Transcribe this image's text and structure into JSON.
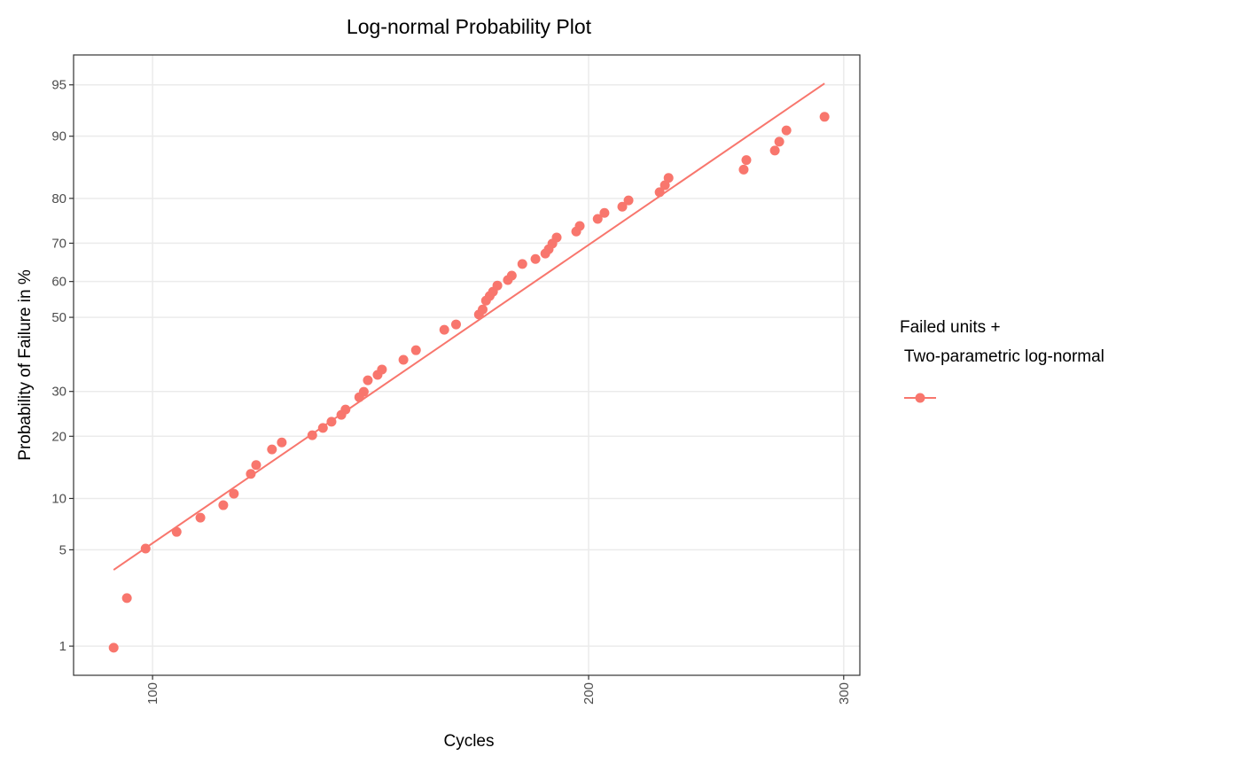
{
  "chart_data": {
    "type": "probability",
    "title": "Log-normal Probability Plot",
    "x_label": "Cycles",
    "y_label": "Probability of Failure in %",
    "x_log": true,
    "y_scale": "probit",
    "grid": true,
    "xlim": [
      88.2,
      307.8
    ],
    "ylim": [
      0.566,
      96.83
    ],
    "xticks": [
      100,
      200,
      300
    ],
    "yticks": [
      1,
      5,
      10,
      20,
      30,
      50,
      60,
      70,
      80,
      90,
      95
    ],
    "legend_title": [
      "Failed units +",
      " Two-parametric log-normal"
    ],
    "legend_position": "right",
    "points": {
      "color": "#f8766d",
      "x": [
        94.0,
        96.0,
        98.9,
        103.9,
        107.9,
        111.9,
        113.8,
        116.9,
        117.9,
        120.9,
        122.8,
        128.9,
        131.1,
        132.9,
        135.0,
        135.9,
        138.9,
        139.9,
        140.8,
        143.0,
        144.0,
        149.0,
        152.0,
        159.0,
        162.0,
        168.0,
        169.0,
        169.9,
        170.9,
        171.8,
        173.0,
        175.9,
        177.0,
        180.0,
        183.8,
        186.7,
        187.7,
        188.8,
        190.1,
        196.1,
        197.2,
        202.9,
        205.1,
        211.0,
        213.1,
        223.9,
        225.8,
        227.1,
        255.9,
        257.0,
        268.9,
        270.8,
        273.9,
        291.0
      ],
      "values": [
        0.97,
        2.35,
        5.09,
        6.45,
        7.82,
        9.19,
        10.6,
        13.4,
        14.8,
        17.5,
        18.8,
        20.2,
        21.7,
        23.0,
        24.5,
        25.7,
        28.6,
        29.9,
        32.8,
        34.2,
        35.6,
        38.2,
        40.8,
        46.5,
        48.0,
        50.8,
        52.2,
        54.7,
        56.0,
        57.2,
        58.9,
        60.4,
        61.6,
        64.7,
        66.0,
        67.4,
        68.5,
        69.9,
        71.4,
        72.8,
        74.1,
        75.7,
        77.0,
        78.3,
        79.6,
        81.2,
        82.5,
        83.8,
        85.2,
        86.7,
        88.1,
        89.3,
        90.7,
        92.2
      ]
    },
    "fit": {
      "color": "#f8766d",
      "x": [
        94.0,
        291.0
      ],
      "values": [
        3.7,
        95.1
      ]
    }
  }
}
